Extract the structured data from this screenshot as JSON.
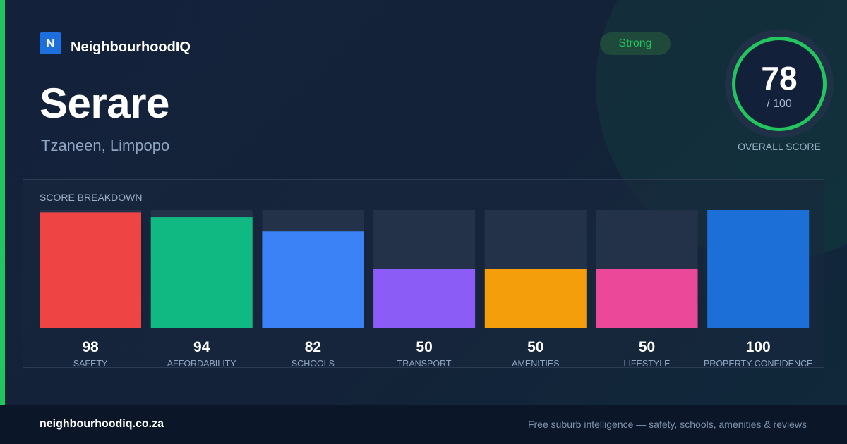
{
  "brand": {
    "logo_letter": "N",
    "name": "NeighbourhoodIQ"
  },
  "suburb": {
    "name": "Serare",
    "location": "Tzaneen, Limpopo"
  },
  "rating": {
    "label": "Strong",
    "score": "78",
    "max": "/ 100",
    "caption": "OVERALL SCORE"
  },
  "colors": {
    "accent": "#22c55e",
    "track": "#243249"
  },
  "chart_data": {
    "type": "bar",
    "title": "SCORE BREAKDOWN",
    "ylim": [
      0,
      100
    ],
    "categories": [
      "SAFETY",
      "AFFORDABILITY",
      "SCHOOLS",
      "TRANSPORT",
      "AMENITIES",
      "LIFESTYLE",
      "PROPERTY CONFIDENCE"
    ],
    "values": [
      98,
      94,
      82,
      50,
      50,
      50,
      100
    ],
    "colors": [
      "#ef4444",
      "#10b981",
      "#3b82f6",
      "#8b5cf6",
      "#f59e0b",
      "#ec4899",
      "#1d6fd8"
    ]
  },
  "footer": {
    "site": "neighbourhoodiq.co.za",
    "tagline": "Free suburb intelligence — safety, schools, amenities & reviews"
  }
}
